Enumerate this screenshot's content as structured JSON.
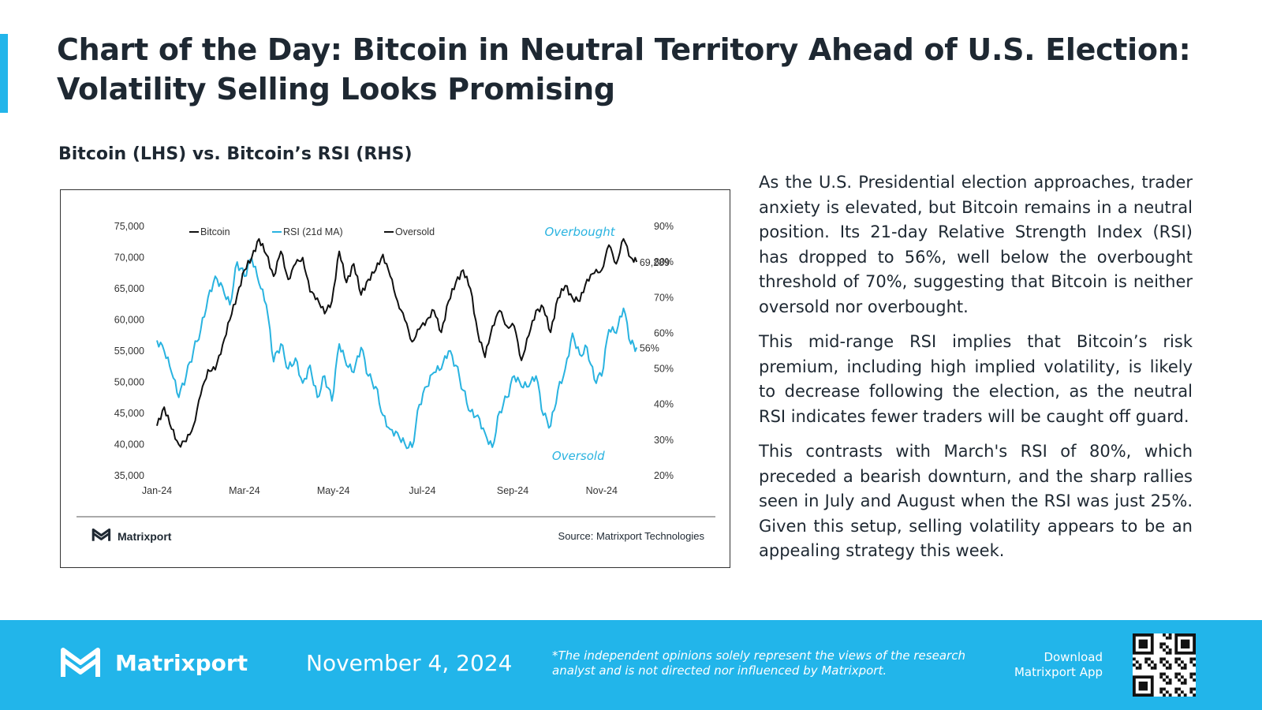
{
  "header": {
    "title": "Chart of the Day: Bitcoin in Neutral Territory Ahead of U.S. Election: Volatility Selling Looks Promising",
    "chart_subtitle": "Bitcoin (LHS) vs. Bitcoin’s RSI (RHS)"
  },
  "colors": {
    "accent": "#22b5ea",
    "bitcoin_line": "#111111",
    "rsi_line": "#29b3e0",
    "text_dark": "#1e2832"
  },
  "chart_data": {
    "type": "line",
    "title": "Bitcoin (LHS) vs. Bitcoin’s RSI (RHS)",
    "legend": [
      "Bitcoin",
      "RSI (21d MA)",
      "Oversold"
    ],
    "legend_position": "top-left",
    "x_tick_labels": [
      "Jan-24",
      "Mar-24",
      "May-24",
      "Jul-24",
      "Sep-24",
      "Nov-24"
    ],
    "x_range_days": [
      0,
      330
    ],
    "x_tick_days": [
      0,
      60,
      121,
      182,
      244,
      305
    ],
    "y_left": {
      "label": "Bitcoin",
      "range": [
        35000,
        75000
      ],
      "ticks": [
        35000,
        40000,
        45000,
        50000,
        55000,
        60000,
        65000,
        70000,
        75000
      ],
      "tick_labels": [
        "35,000",
        "40,000",
        "45,000",
        "50,000",
        "55,000",
        "60,000",
        "65,000",
        "70,000",
        "75,000"
      ]
    },
    "y_right": {
      "label": "RSI",
      "range": [
        20,
        90
      ],
      "ticks": [
        20,
        30,
        40,
        50,
        60,
        70,
        80,
        90
      ],
      "tick_labels": [
        "20%",
        "30%",
        "40%",
        "50%",
        "60%",
        "70%",
        "80%",
        "90%"
      ]
    },
    "series": [
      {
        "name": "Bitcoin",
        "axis": "left",
        "x": [
          0,
          5,
          10,
          15,
          20,
          25,
          30,
          35,
          40,
          45,
          50,
          55,
          60,
          65,
          70,
          75,
          80,
          85,
          90,
          95,
          100,
          105,
          110,
          115,
          120,
          125,
          130,
          135,
          140,
          145,
          150,
          155,
          160,
          165,
          170,
          175,
          180,
          185,
          190,
          195,
          200,
          205,
          210,
          215,
          220,
          225,
          230,
          235,
          240,
          245,
          250,
          255,
          260,
          265,
          270,
          275,
          280,
          285,
          290,
          295,
          300,
          305,
          310,
          315,
          320,
          325,
          329
        ],
        "y": [
          43000,
          46000,
          42500,
          40000,
          40500,
          43000,
          48000,
          52000,
          52000,
          56000,
          60000,
          64000,
          68000,
          70000,
          73000,
          70500,
          67000,
          71000,
          66500,
          69000,
          70000,
          64500,
          63500,
          61000,
          63000,
          71000,
          66000,
          69000,
          64000,
          66500,
          68000,
          70500,
          67000,
          63000,
          60000,
          56500,
          58500,
          60000,
          61500,
          58000,
          63000,
          66000,
          68000,
          65000,
          58000,
          54000,
          59000,
          61500,
          59000,
          59000,
          53500,
          57500,
          61500,
          62000,
          58000,
          63500,
          65500,
          63500,
          63000,
          66500,
          67500,
          68000,
          72000,
          69000,
          73000,
          70000,
          69289
        ]
      },
      {
        "name": "RSI (21d MA)",
        "axis": "right",
        "x": [
          0,
          5,
          10,
          15,
          20,
          25,
          30,
          35,
          40,
          45,
          50,
          55,
          60,
          65,
          70,
          75,
          80,
          85,
          90,
          95,
          100,
          105,
          110,
          115,
          120,
          125,
          130,
          135,
          140,
          145,
          150,
          155,
          160,
          165,
          170,
          175,
          180,
          185,
          190,
          195,
          200,
          205,
          210,
          215,
          220,
          225,
          230,
          235,
          240,
          245,
          250,
          255,
          260,
          265,
          270,
          275,
          280,
          285,
          290,
          295,
          300,
          305,
          310,
          315,
          320,
          325,
          329
        ],
        "y": [
          58,
          55,
          49,
          42,
          48,
          55,
          61,
          70,
          76,
          73,
          68,
          80,
          76,
          81,
          74,
          68,
          52,
          57,
          50,
          53,
          46,
          51,
          42,
          48,
          41,
          57,
          51,
          49,
          56,
          48,
          45,
          37,
          33,
          32,
          29,
          28,
          40,
          45,
          49,
          50,
          55,
          51,
          44,
          38,
          37,
          32,
          28,
          38,
          42,
          48,
          45,
          45,
          48,
          37,
          34,
          44,
          50,
          60,
          54,
          56,
          47,
          48,
          61,
          60,
          67,
          57,
          56
        ]
      },
      {
        "name": "Oversold",
        "axis": "right",
        "x": [],
        "y": []
      }
    ],
    "annotations": [
      {
        "text": "Overbought",
        "x": 290,
        "y": 88.5,
        "axis": "right"
      },
      {
        "text": "Oversold",
        "x": 289,
        "y": 25.5,
        "axis": "right"
      },
      {
        "text": "69,289",
        "x": 331,
        "y": 69289,
        "axis": "left"
      },
      {
        "text": "56%",
        "x": 331,
        "y": 56,
        "axis": "right"
      }
    ],
    "grid": false
  },
  "chart_footer": {
    "brand": "Matrixport",
    "source": "Source: Matrixport Technologies"
  },
  "commentary": [
    "As the U.S. Presidential election approaches, trader anxiety is elevated, but Bitcoin remains in a neutral position. Its 21-day Relative Strength Index (RSI) has dropped to 56%, well below the overbought threshold of 70%, suggesting that Bitcoin is neither oversold nor overbought.",
    "This mid-range RSI implies that Bitcoin’s risk premium, including high implied volatility, is likely to decrease following the election, as the neutral RSI indicates fewer traders will be caught off guard.",
    "This contrasts with March's RSI of 80%, which preceded a bearish downturn, and the sharp rallies seen in July and August when the RSI was just 25%. Given this setup, selling volatility appears to be an appealing strategy this week."
  ],
  "footer": {
    "brand": "Matrixport",
    "date": "November 4, 2024",
    "disclaimer": "*The independent opinions solely represent the views of the research analyst and is not directed nor influenced by Matrixport.",
    "download_line1": "Download",
    "download_line2": "Matrixport App"
  }
}
